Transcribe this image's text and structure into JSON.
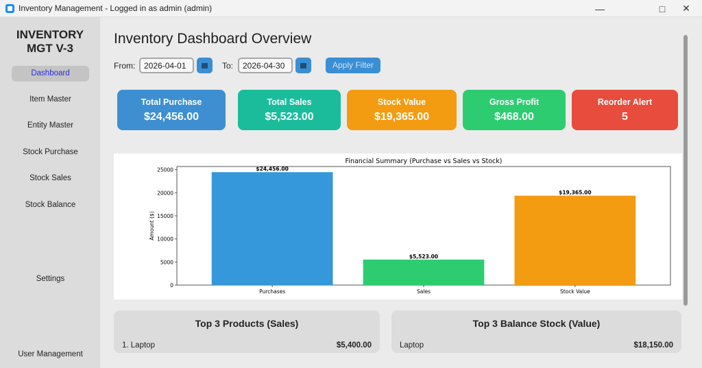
{
  "window": {
    "title": "Inventory Management - Logged in as admin (admin)"
  },
  "sidebar": {
    "brand_line1": "INVENTORY",
    "brand_line2": "MGT V-3",
    "items": [
      {
        "label": "Dashboard",
        "active": true
      },
      {
        "label": "Item Master"
      },
      {
        "label": "Entity Master"
      },
      {
        "label": "Stock Purchase"
      },
      {
        "label": "Stock Sales"
      },
      {
        "label": "Stock Balance"
      },
      {
        "label": "Settings"
      },
      {
        "label": "User Management"
      }
    ]
  },
  "header": {
    "title": "Inventory Dashboard Overview"
  },
  "filter": {
    "from_label": "From:",
    "from_value": "2026-04-01",
    "to_label": "To:",
    "to_value": "2026-04-30",
    "apply_label": "Apply Filter"
  },
  "cards": [
    {
      "title": "Total Purchase",
      "value": "$24,456.00",
      "color": "#3d8fd1"
    },
    {
      "title": "Total Sales",
      "value": "$5,523.00",
      "color": "#1abc9c"
    },
    {
      "title": "Stock Value",
      "value": "$19,365.00",
      "color": "#f39c12"
    },
    {
      "title": "Gross Profit",
      "value": "$468.00",
      "color": "#2ecc71"
    },
    {
      "title": "Reorder Alert",
      "value": "5",
      "color": "#e74c3c"
    }
  ],
  "chart_data": {
    "type": "bar",
    "title": "Financial Summary (Purchase vs Sales vs Stock)",
    "xlabel": "",
    "ylabel": "Amount ($)",
    "categories": [
      "Purchases",
      "Sales",
      "Stock Value"
    ],
    "values": [
      24456,
      5523,
      19365
    ],
    "data_labels": [
      "$24,456.00",
      "$5,523.00",
      "$19,365.00"
    ],
    "colors": [
      "#3498db",
      "#2ecc71",
      "#f39c12"
    ],
    "ylim": [
      0,
      25679
    ],
    "yticks": [
      0,
      5000,
      10000,
      15000,
      20000,
      25000
    ],
    "grid": false
  },
  "panels": [
    {
      "title": "Top 3 Products (Sales)",
      "rows": [
        {
          "name": "1. Laptop",
          "value": "$5,400.00"
        }
      ]
    },
    {
      "title": "Top 3 Balance Stock (Value)",
      "rows": [
        {
          "name": "Laptop",
          "value": "$18,150.00"
        }
      ]
    }
  ]
}
